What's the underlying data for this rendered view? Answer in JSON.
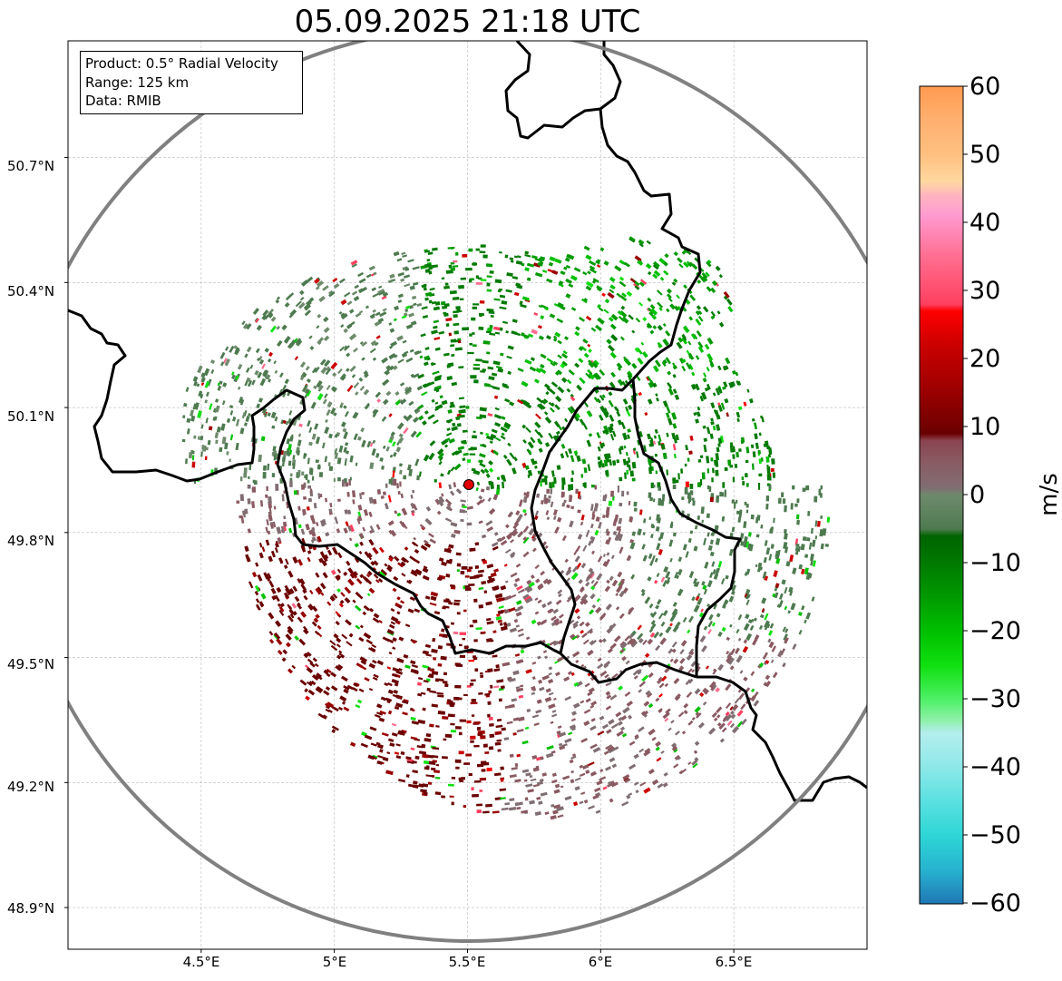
{
  "title": "05.09.2025 21:18 UTC",
  "info": {
    "product": "Product: 0.5° Radial Velocity",
    "range": "Range: 125 km",
    "data": "Data: RMIB"
  },
  "axes": {
    "lat_labels": [
      "50.7°N",
      "50.4°N",
      "50.1°N",
      "49.8°N",
      "49.5°N",
      "49.2°N",
      "48.9°N"
    ],
    "lon_labels": [
      "4.5°E",
      "5°E",
      "5.5°E",
      "6°E",
      "6.5°E"
    ],
    "lat_range": [
      48.8,
      50.98
    ],
    "lon_range": [
      4.0,
      7.0
    ]
  },
  "radar_site": {
    "lon": 5.505,
    "lat": 49.915,
    "color": "#e00000"
  },
  "range_ring_color": "#808080",
  "colorbar": {
    "label": "m/s",
    "ticks": [
      "60",
      "50",
      "40",
      "30",
      "20",
      "10",
      "0",
      "−10",
      "−20",
      "−30",
      "−40",
      "−50",
      "−60"
    ],
    "range": [
      -60,
      60
    ],
    "stops": [
      {
        "v": -60,
        "c": "#1f77b4"
      },
      {
        "v": -55,
        "c": "#27b3cf"
      },
      {
        "v": -50,
        "c": "#2ed6d6"
      },
      {
        "v": -45,
        "c": "#5ae0e0"
      },
      {
        "v": -40,
        "c": "#8de8e8"
      },
      {
        "v": -35,
        "c": "#b4eeee"
      },
      {
        "v": -33,
        "c": "#8ef0a8"
      },
      {
        "v": -30,
        "c": "#4ef067"
      },
      {
        "v": -25,
        "c": "#10e010"
      },
      {
        "v": -20,
        "c": "#00c000"
      },
      {
        "v": -15,
        "c": "#009a00"
      },
      {
        "v": -10,
        "c": "#007a00"
      },
      {
        "v": -6,
        "c": "#006400"
      },
      {
        "v": -5,
        "c": "#4e7a50"
      },
      {
        "v": 0,
        "c": "#6e8a6c"
      },
      {
        "v": 1,
        "c": "#806e72"
      },
      {
        "v": 5,
        "c": "#8a5a62"
      },
      {
        "v": 8,
        "c": "#8a4450"
      },
      {
        "v": 9,
        "c": "#6a0000"
      },
      {
        "v": 15,
        "c": "#990000"
      },
      {
        "v": 22,
        "c": "#cc0000"
      },
      {
        "v": 27,
        "c": "#ff0000"
      },
      {
        "v": 28,
        "c": "#ff4060"
      },
      {
        "v": 35,
        "c": "#ff6e90"
      },
      {
        "v": 41,
        "c": "#ff9ad0"
      },
      {
        "v": 44,
        "c": "#ffb4c0"
      },
      {
        "v": 46,
        "c": "#ffd8a0"
      },
      {
        "v": 50,
        "c": "#ffc080"
      },
      {
        "v": 55,
        "c": "#ffb070"
      },
      {
        "v": 60,
        "c": "#ff9a50"
      }
    ]
  }
}
